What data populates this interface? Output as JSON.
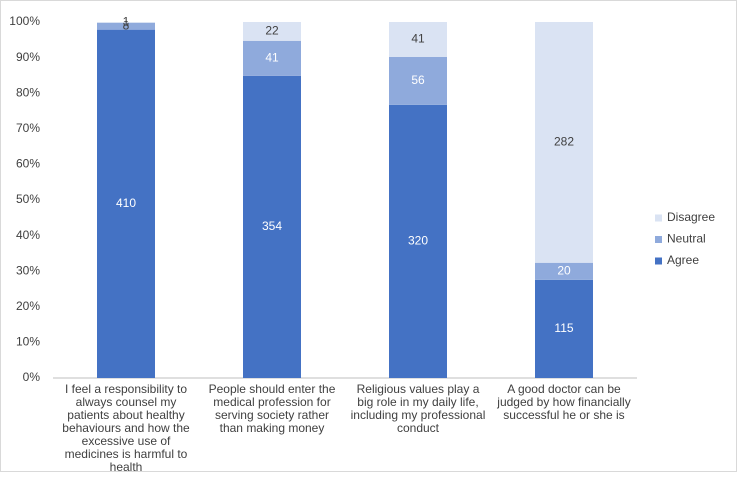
{
  "chart_data": {
    "type": "bar",
    "stacking": "percent",
    "categories": [
      "I feel a responsibility to always counsel my patients about healthy behaviours and how the excessive use of medicines is harmful to health",
      "People should enter the medical profession for serving society rather than making money",
      "Religious values play a big role in my daily life, including my professional conduct",
      "A good doctor can be judged by how financially successful he or she is"
    ],
    "series": [
      {
        "name": "Agree",
        "color": "#4472c4",
        "values": [
          410,
          354,
          320,
          115
        ]
      },
      {
        "name": "Neutral",
        "color": "#8faadc",
        "values": [
          8,
          41,
          56,
          20
        ]
      },
      {
        "name": "Disagree",
        "color": "#dae3f3",
        "values": [
          1,
          22,
          41,
          282
        ]
      }
    ],
    "ylim": [
      0,
      100
    ],
    "yticks": [
      {
        "value": 0,
        "label": "0%"
      },
      {
        "value": 10,
        "label": "10%"
      },
      {
        "value": 20,
        "label": "20%"
      },
      {
        "value": 30,
        "label": "30%"
      },
      {
        "value": 40,
        "label": "40%"
      },
      {
        "value": 50,
        "label": "50%"
      },
      {
        "value": 60,
        "label": "60%"
      },
      {
        "value": 70,
        "label": "70%"
      },
      {
        "value": 80,
        "label": "80%"
      },
      {
        "value": 90,
        "label": "90%"
      },
      {
        "value": 100,
        "label": "100%"
      }
    ],
    "grid": false,
    "legend": "right"
  }
}
